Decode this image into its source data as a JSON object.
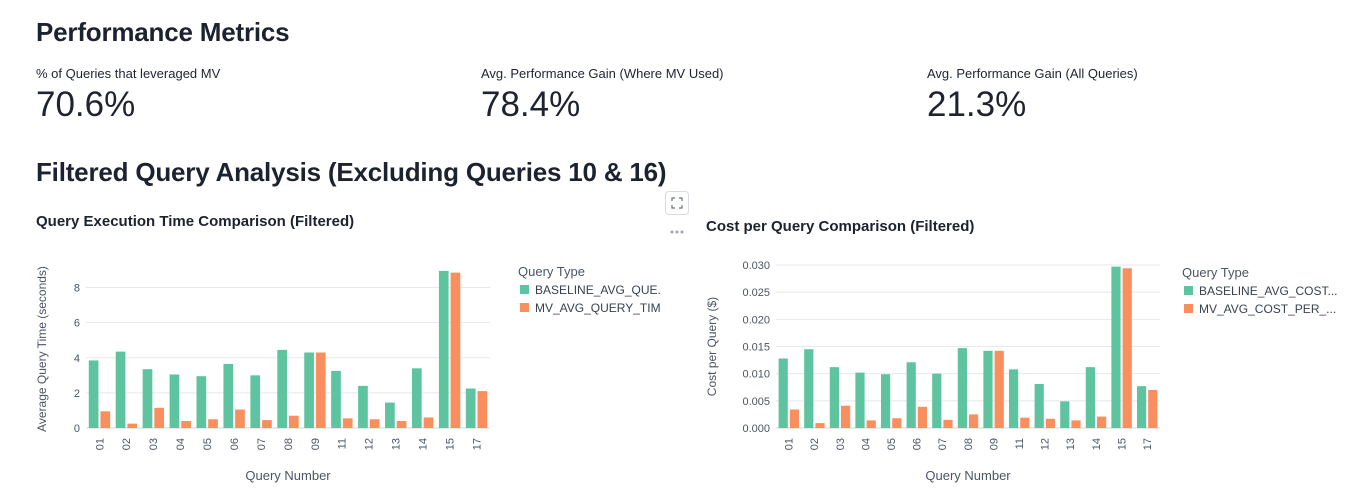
{
  "performance": {
    "title": "Performance Metrics",
    "metrics": [
      {
        "label": "% of Queries that leveraged MV",
        "value": "70.6%"
      },
      {
        "label": "Avg. Performance Gain (Where MV Used)",
        "value": "78.4%"
      },
      {
        "label": "Avg. Performance Gain (All Queries)",
        "value": "21.3%"
      }
    ]
  },
  "filtered": {
    "title": "Filtered Query Analysis (Excluding Queries 10 & 16)"
  },
  "colors": {
    "baseline": "#5ec4a0",
    "mv": "#f98e5e"
  },
  "chart_data": [
    {
      "type": "bar",
      "title": "Query Execution Time Comparison (Filtered)",
      "xlabel": "Query Number",
      "ylabel": "Average Query Time (seconds)",
      "ylim": [
        0,
        9
      ],
      "yticks": [
        0,
        2,
        4,
        6,
        8
      ],
      "yticks_labels": [
        "0",
        "2",
        "4",
        "6",
        "8"
      ],
      "categories": [
        "01",
        "02",
        "03",
        "04",
        "05",
        "06",
        "07",
        "08",
        "09",
        "11",
        "12",
        "13",
        "14",
        "15",
        "17"
      ],
      "legend_title": "Query Type",
      "series": [
        {
          "name": "BASELINE_AVG_QUE...",
          "values": [
            3.85,
            4.35,
            3.35,
            3.05,
            2.95,
            3.65,
            3.0,
            4.45,
            4.3,
            3.25,
            2.4,
            1.45,
            3.4,
            8.95,
            2.25
          ]
        },
        {
          "name": "MV_AVG_QUERY_TIM...",
          "values": [
            0.95,
            0.25,
            1.15,
            0.4,
            0.5,
            1.05,
            0.45,
            0.7,
            4.3,
            0.55,
            0.5,
            0.4,
            0.6,
            8.85,
            2.1
          ]
        }
      ]
    },
    {
      "type": "bar",
      "title": "Cost per Query Comparison (Filtered)",
      "xlabel": "Query Number",
      "ylabel": "Cost per Query ($)",
      "ylim": [
        0,
        0.03
      ],
      "yticks": [
        0,
        0.005,
        0.01,
        0.015,
        0.02,
        0.025,
        0.03
      ],
      "yticks_labels": [
        "0.000",
        "0.005",
        "0.010",
        "0.015",
        "0.020",
        "0.025",
        "0.030"
      ],
      "categories": [
        "01",
        "02",
        "03",
        "04",
        "05",
        "06",
        "07",
        "08",
        "09",
        "11",
        "12",
        "13",
        "14",
        "15",
        "17"
      ],
      "legend_title": "Query Type",
      "series": [
        {
          "name": "BASELINE_AVG_COST...",
          "values": [
            0.0128,
            0.0145,
            0.0112,
            0.0102,
            0.0099,
            0.0121,
            0.01,
            0.0147,
            0.0142,
            0.0108,
            0.0081,
            0.0049,
            0.0112,
            0.0297,
            0.0077
          ]
        },
        {
          "name": "MV_AVG_COST_PER_...",
          "values": [
            0.0034,
            0.0009,
            0.0041,
            0.0014,
            0.0018,
            0.0039,
            0.0015,
            0.0025,
            0.0142,
            0.0019,
            0.0017,
            0.0014,
            0.0021,
            0.0294,
            0.007
          ]
        }
      ]
    }
  ]
}
